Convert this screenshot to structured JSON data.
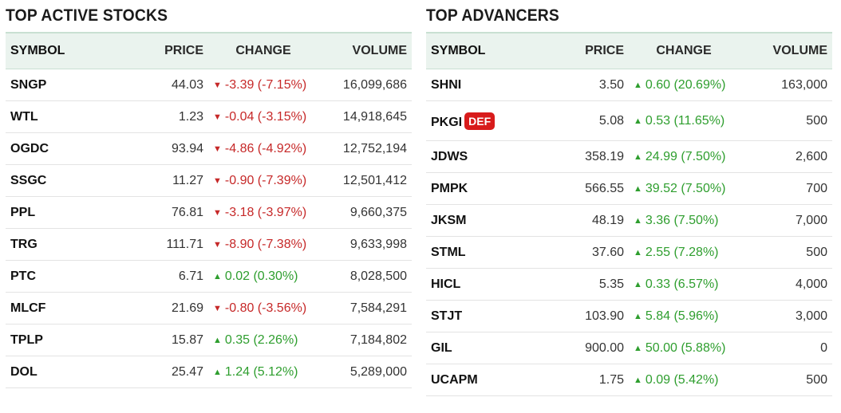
{
  "active": {
    "title": "TOP ACTIVE STOCKS",
    "headers": {
      "symbol": "SYMBOL",
      "price": "PRICE",
      "change": "CHANGE",
      "volume": "VOLUME"
    },
    "rows": [
      {
        "symbol": "SNGP",
        "price": "44.03",
        "change": "-3.39 (-7.15%)",
        "volume": "16,099,686",
        "dir": "down"
      },
      {
        "symbol": "WTL",
        "price": "1.23",
        "change": "-0.04 (-3.15%)",
        "volume": "14,918,645",
        "dir": "down"
      },
      {
        "symbol": "OGDC",
        "price": "93.94",
        "change": "-4.86 (-4.92%)",
        "volume": "12,752,194",
        "dir": "down"
      },
      {
        "symbol": "SSGC",
        "price": "11.27",
        "change": "-0.90 (-7.39%)",
        "volume": "12,501,412",
        "dir": "down"
      },
      {
        "symbol": "PPL",
        "price": "76.81",
        "change": "-3.18 (-3.97%)",
        "volume": "9,660,375",
        "dir": "down"
      },
      {
        "symbol": "TRG",
        "price": "111.71",
        "change": "-8.90 (-7.38%)",
        "volume": "9,633,998",
        "dir": "down"
      },
      {
        "symbol": "PTC",
        "price": "6.71",
        "change": "0.02 (0.30%)",
        "volume": "8,028,500",
        "dir": "up"
      },
      {
        "symbol": "MLCF",
        "price": "21.69",
        "change": "-0.80 (-3.56%)",
        "volume": "7,584,291",
        "dir": "down"
      },
      {
        "symbol": "TPLP",
        "price": "15.87",
        "change": "0.35 (2.26%)",
        "volume": "7,184,802",
        "dir": "up"
      },
      {
        "symbol": "DOL",
        "price": "25.47",
        "change": "1.24 (5.12%)",
        "volume": "5,289,000",
        "dir": "up"
      }
    ]
  },
  "advancers": {
    "title": "TOP ADVANCERS",
    "headers": {
      "symbol": "SYMBOL",
      "price": "PRICE",
      "change": "CHANGE",
      "volume": "VOLUME"
    },
    "rows": [
      {
        "symbol": "SHNI",
        "price": "3.50",
        "change": "0.60 (20.69%)",
        "volume": "163,000",
        "dir": "up"
      },
      {
        "symbol": "PKGI",
        "badge": "DEF",
        "price": "5.08",
        "change": "0.53 (11.65%)",
        "volume": "500",
        "dir": "up"
      },
      {
        "symbol": "JDWS",
        "price": "358.19",
        "change": "24.99 (7.50%)",
        "volume": "2,600",
        "dir": "up"
      },
      {
        "symbol": "PMPK",
        "price": "566.55",
        "change": "39.52 (7.50%)",
        "volume": "700",
        "dir": "up"
      },
      {
        "symbol": "JKSM",
        "price": "48.19",
        "change": "3.36 (7.50%)",
        "volume": "7,000",
        "dir": "up"
      },
      {
        "symbol": "STML",
        "price": "37.60",
        "change": "2.55 (7.28%)",
        "volume": "500",
        "dir": "up"
      },
      {
        "symbol": "HICL",
        "price": "5.35",
        "change": "0.33 (6.57%)",
        "volume": "4,000",
        "dir": "up"
      },
      {
        "symbol": "STJT",
        "price": "103.90",
        "change": "5.84 (5.96%)",
        "volume": "3,000",
        "dir": "up"
      },
      {
        "symbol": "GIL",
        "price": "900.00",
        "change": "50.00 (5.88%)",
        "volume": "0",
        "dir": "up"
      },
      {
        "symbol": "UCAPM",
        "price": "1.75",
        "change": "0.09 (5.42%)",
        "volume": "500",
        "dir": "up"
      }
    ]
  },
  "colors": {
    "down": "#c62828",
    "up": "#2e9e2e",
    "badge": "#d81b1b",
    "header_bg": "#eaf3ee"
  },
  "icons": {
    "down": "triangle-down-icon",
    "up": "triangle-up-icon"
  }
}
